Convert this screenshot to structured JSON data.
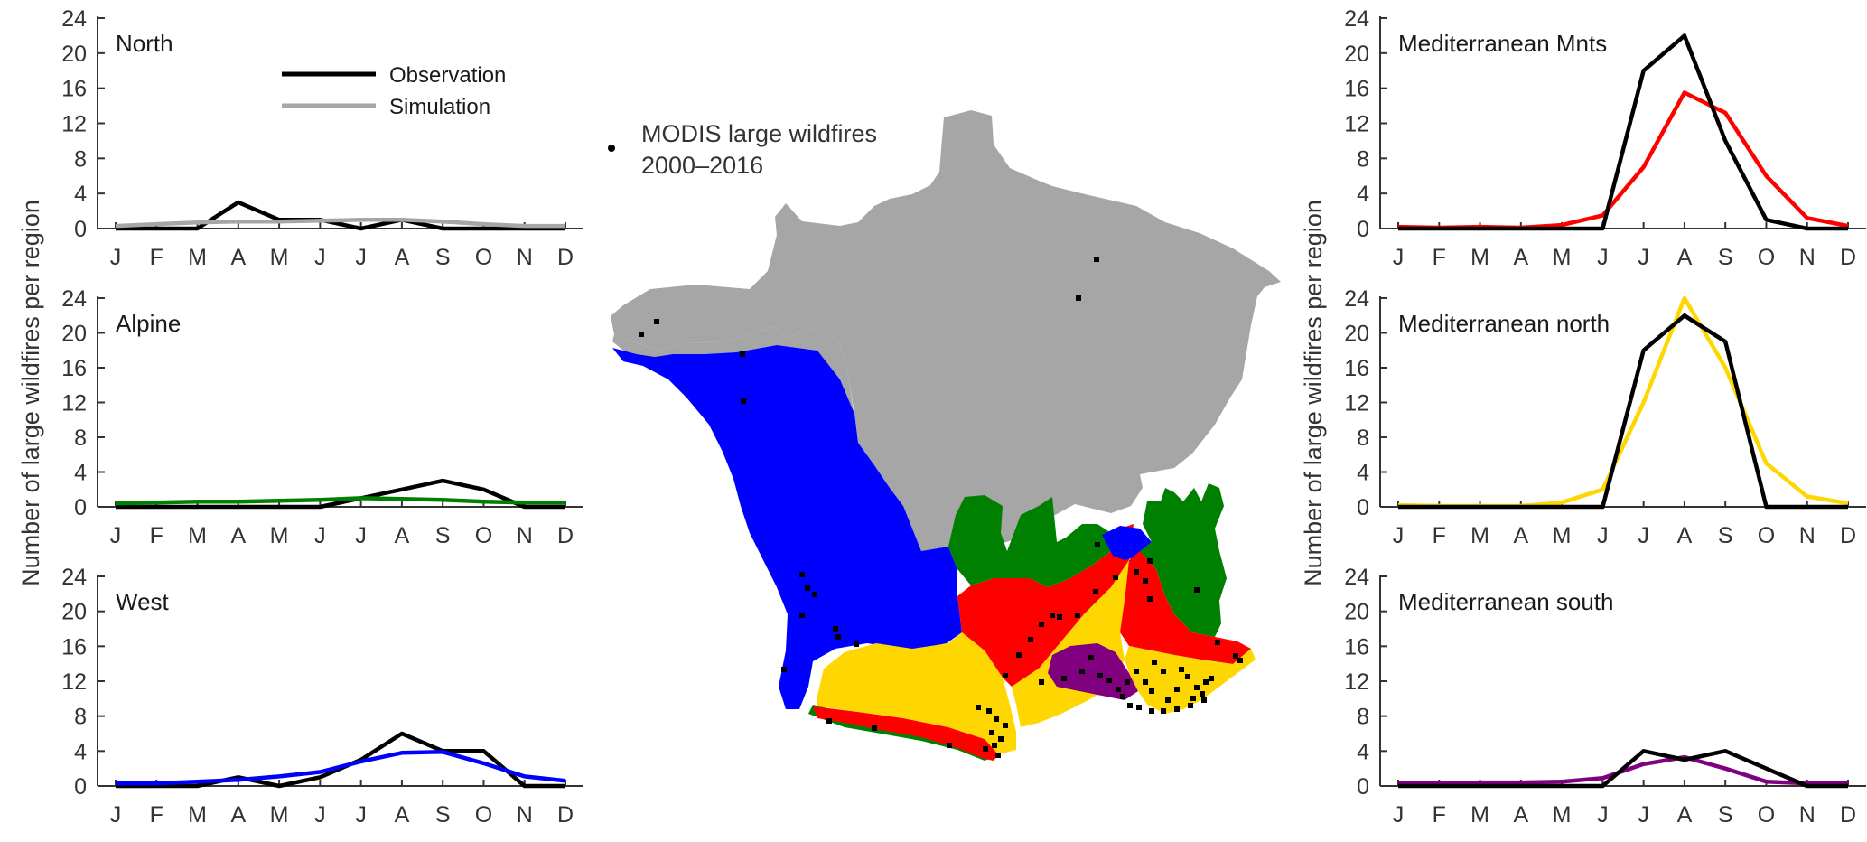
{
  "ylabel": "Number of large wildfires per region",
  "legend": {
    "observation": "Observation",
    "simulation": "Simulation",
    "placement": "top-right of North panel"
  },
  "map": {
    "legend_line1": "MODIS large wildfires",
    "legend_line2": "2000–2016",
    "colors": {
      "north": "#a6a6a6",
      "west": "#0000ff",
      "alpine": "#008000",
      "med_mnts": "#ff0000",
      "med_north": "#ffd700",
      "med_south": "#800080",
      "fires": "#000000"
    }
  },
  "chart_data": [
    {
      "type": "line",
      "title": "North",
      "position": "left-top",
      "categories": [
        "J",
        "F",
        "M",
        "A",
        "M",
        "J",
        "J",
        "A",
        "S",
        "O",
        "N",
        "D"
      ],
      "yticks": [
        0,
        4,
        8,
        12,
        16,
        20,
        24
      ],
      "ylim": [
        0,
        24
      ],
      "observed": [
        0,
        0,
        0,
        3,
        1,
        1,
        0,
        1,
        0,
        0,
        0,
        0
      ],
      "simulated": [
        0.3,
        0.5,
        0.7,
        0.8,
        0.8,
        0.9,
        1.0,
        1.0,
        0.8,
        0.5,
        0.3,
        0.3
      ],
      "sim_color": "#a6a6a6"
    },
    {
      "type": "line",
      "title": "Alpine",
      "position": "left-middle",
      "categories": [
        "J",
        "F",
        "M",
        "A",
        "M",
        "J",
        "J",
        "A",
        "S",
        "O",
        "N",
        "D"
      ],
      "yticks": [
        0,
        4,
        8,
        12,
        16,
        20,
        24
      ],
      "ylim": [
        0,
        24
      ],
      "observed": [
        0,
        0,
        0,
        0,
        0,
        0,
        1,
        2,
        3,
        2,
        0,
        0
      ],
      "simulated": [
        0.4,
        0.5,
        0.6,
        0.6,
        0.7,
        0.8,
        1.0,
        0.9,
        0.8,
        0.6,
        0.5,
        0.5
      ],
      "sim_color": "#008000"
    },
    {
      "type": "line",
      "title": "West",
      "position": "left-bottom",
      "categories": [
        "J",
        "F",
        "M",
        "A",
        "M",
        "J",
        "J",
        "A",
        "S",
        "O",
        "N",
        "D"
      ],
      "yticks": [
        0,
        4,
        8,
        12,
        16,
        20,
        24
      ],
      "ylim": [
        0,
        24
      ],
      "observed": [
        0,
        0,
        0,
        1,
        0,
        1,
        3,
        6,
        4,
        4,
        0,
        0
      ],
      "simulated": [
        0.3,
        0.3,
        0.5,
        0.7,
        1.1,
        1.6,
        2.8,
        3.8,
        3.9,
        2.6,
        1.1,
        0.6
      ],
      "sim_color": "#0000ff"
    },
    {
      "type": "line",
      "title": "Mediterranean Mnts",
      "position": "right-top",
      "categories": [
        "J",
        "F",
        "M",
        "A",
        "M",
        "J",
        "J",
        "A",
        "S",
        "O",
        "N",
        "D"
      ],
      "yticks": [
        0,
        4,
        8,
        12,
        16,
        20,
        24
      ],
      "ylim": [
        0,
        24
      ],
      "observed": [
        0,
        0,
        0,
        0,
        0,
        0,
        18,
        22,
        10,
        1,
        0,
        0
      ],
      "simulated": [
        0.2,
        0.1,
        0.2,
        0.1,
        0.4,
        1.5,
        7,
        15.5,
        13.2,
        6,
        1.2,
        0.3
      ],
      "sim_color": "#ff0000"
    },
    {
      "type": "line",
      "title": "Mediterranean north",
      "position": "right-middle",
      "categories": [
        "J",
        "F",
        "M",
        "A",
        "M",
        "J",
        "J",
        "A",
        "S",
        "O",
        "N",
        "D"
      ],
      "yticks": [
        0,
        4,
        8,
        12,
        16,
        20,
        24
      ],
      "ylim": [
        0,
        24
      ],
      "observed": [
        0,
        0,
        0,
        0,
        0,
        0,
        18,
        22,
        19,
        0,
        0,
        0
      ],
      "simulated": [
        0.2,
        0.1,
        0.1,
        0.1,
        0.5,
        2,
        12,
        24,
        16,
        5,
        1.2,
        0.4
      ],
      "sim_color": "#ffd700"
    },
    {
      "type": "line",
      "title": "Mediterranean south",
      "position": "right-bottom",
      "categories": [
        "J",
        "F",
        "M",
        "A",
        "M",
        "J",
        "J",
        "A",
        "S",
        "O",
        "N",
        "D"
      ],
      "yticks": [
        0,
        4,
        8,
        12,
        16,
        20,
        24
      ],
      "ylim": [
        0,
        24
      ],
      "observed": [
        0,
        0,
        0,
        0,
        0,
        0,
        4,
        3,
        4,
        2,
        0,
        0
      ],
      "simulated": [
        0.3,
        0.3,
        0.4,
        0.4,
        0.5,
        0.9,
        2.5,
        3.3,
        2,
        0.5,
        0.3,
        0.3
      ],
      "sim_color": "#800080"
    }
  ]
}
